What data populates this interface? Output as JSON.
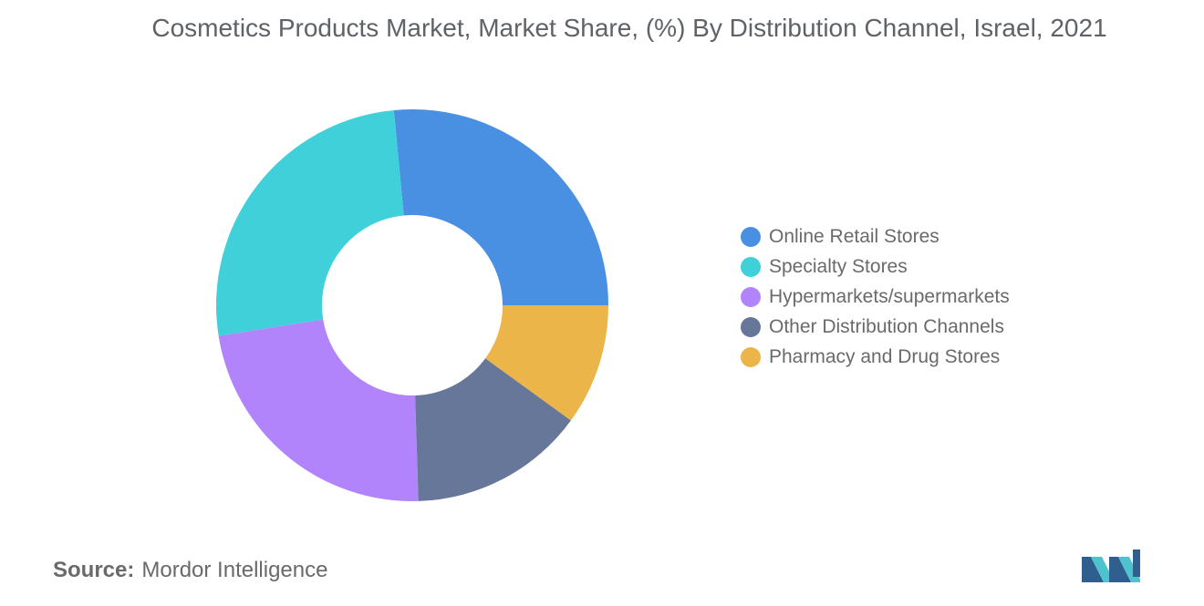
{
  "title": "Cosmetics Products Market, Market Share, (%) By Distribution Channel, Israel, 2021",
  "source": {
    "label": "Source:",
    "value": "Mordor Intelligence"
  },
  "logo_icon": "mordor-intelligence-logo-icon",
  "chart_data": {
    "type": "pie",
    "variant": "donut",
    "title": "Cosmetics Products Market, Market Share, (%) By Distribution Channel, Israel, 2021",
    "legend_position": "right",
    "categories": [
      "Online Retail Stores",
      "Specialty Stores",
      "Hypermarkets/supermarkets",
      "Other Distribution Channels",
      "Pharmacy and Drug Stores"
    ],
    "values": [
      26.5,
      26.0,
      23.0,
      14.5,
      10.0
    ],
    "colors": [
      "#4a90e2",
      "#40d0da",
      "#b184fb",
      "#66779a",
      "#ecb54a"
    ]
  }
}
